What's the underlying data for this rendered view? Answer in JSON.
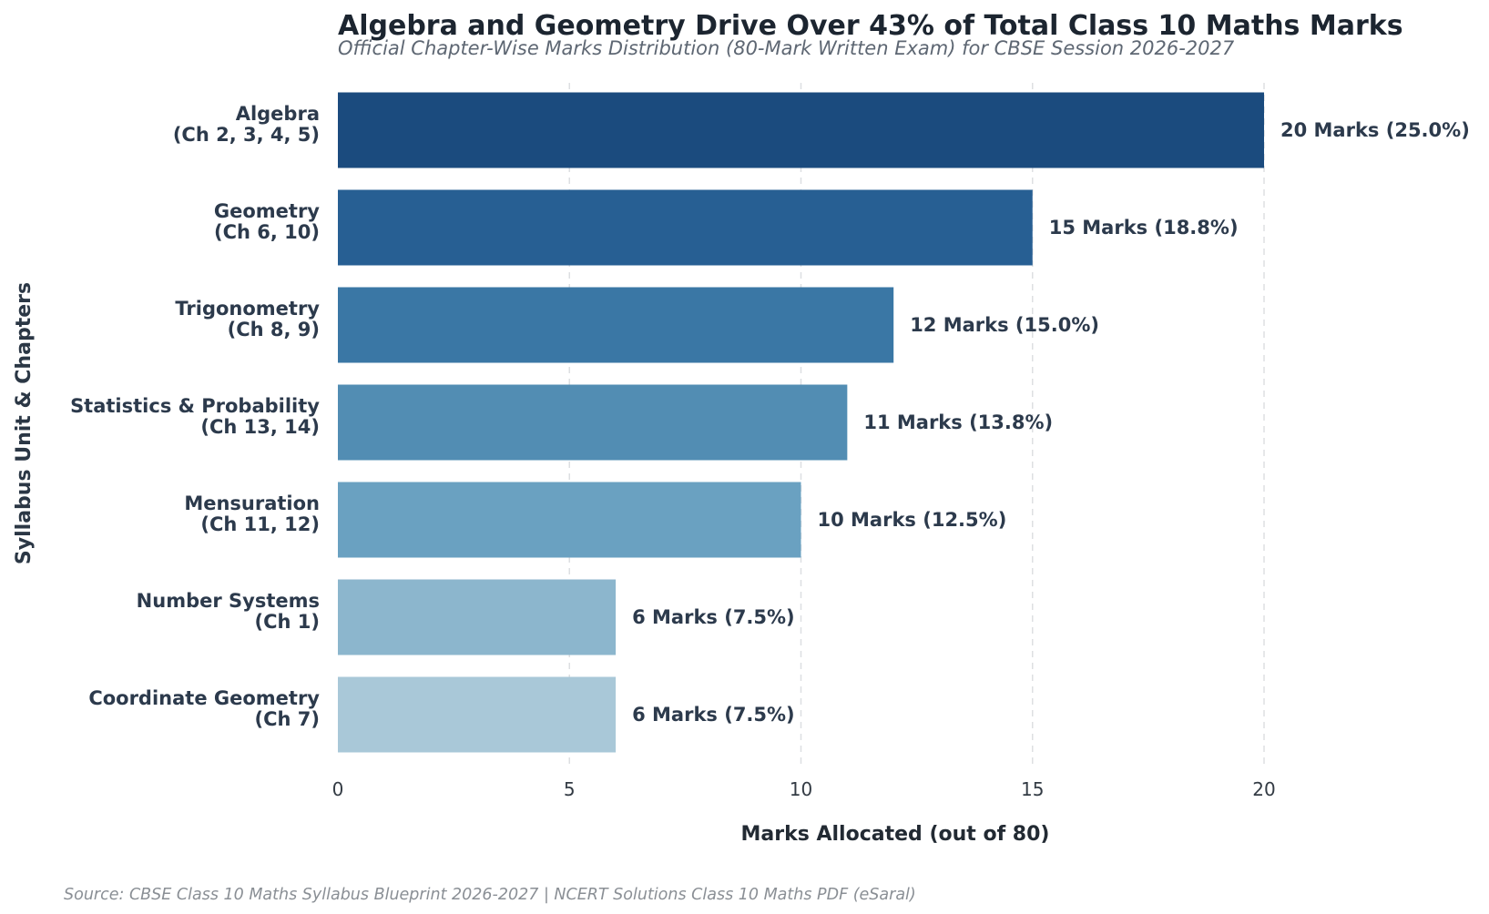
{
  "chart_data": {
    "type": "bar",
    "orientation": "horizontal",
    "title": "Algebra and Geometry Drive Over 43% of Total Class 10 Maths Marks",
    "subtitle": "Official Chapter-Wise Marks Distribution (80-Mark Written Exam) for CBSE Session 2026-2027",
    "xlabel": "Marks Allocated (out of 80)",
    "ylabel": "Syllabus Unit & Chapters",
    "xlim": [
      0,
      20
    ],
    "x_ticks": [
      "0",
      "5",
      "10",
      "15",
      "20"
    ],
    "grid": "vertical dashed",
    "categories": [
      [
        "Algebra",
        "(Ch 2, 3, 4, 5)"
      ],
      [
        "Geometry",
        "(Ch 6, 10)"
      ],
      [
        "Trigonometry",
        "(Ch 8, 9)"
      ],
      [
        "Statistics & Probability",
        "(Ch 13, 14)"
      ],
      [
        "Mensuration",
        "(Ch 11, 12)"
      ],
      [
        "Number Systems",
        "(Ch 1)"
      ],
      [
        "Coordinate Geometry",
        "(Ch 7)"
      ]
    ],
    "values": [
      20,
      15,
      12,
      11,
      10,
      6,
      6
    ],
    "data_labels": [
      "20 Marks (25.0%)",
      "15 Marks (18.8%)",
      "12 Marks (15.0%)",
      "11 Marks (13.8%)",
      "10 Marks (12.5%)",
      "6 Marks (7.5%)",
      "6 Marks (7.5%)"
    ],
    "colors": [
      "#1b4b7e",
      "#275f93",
      "#3a77a5",
      "#528db3",
      "#6aa1c1",
      "#8cb6cd",
      "#a9c8d8"
    ],
    "source": "Source: CBSE Class 10 Maths Syllabus Blueprint 2026-2027 | NCERT Solutions Class 10 Maths PDF (eSaral)"
  }
}
